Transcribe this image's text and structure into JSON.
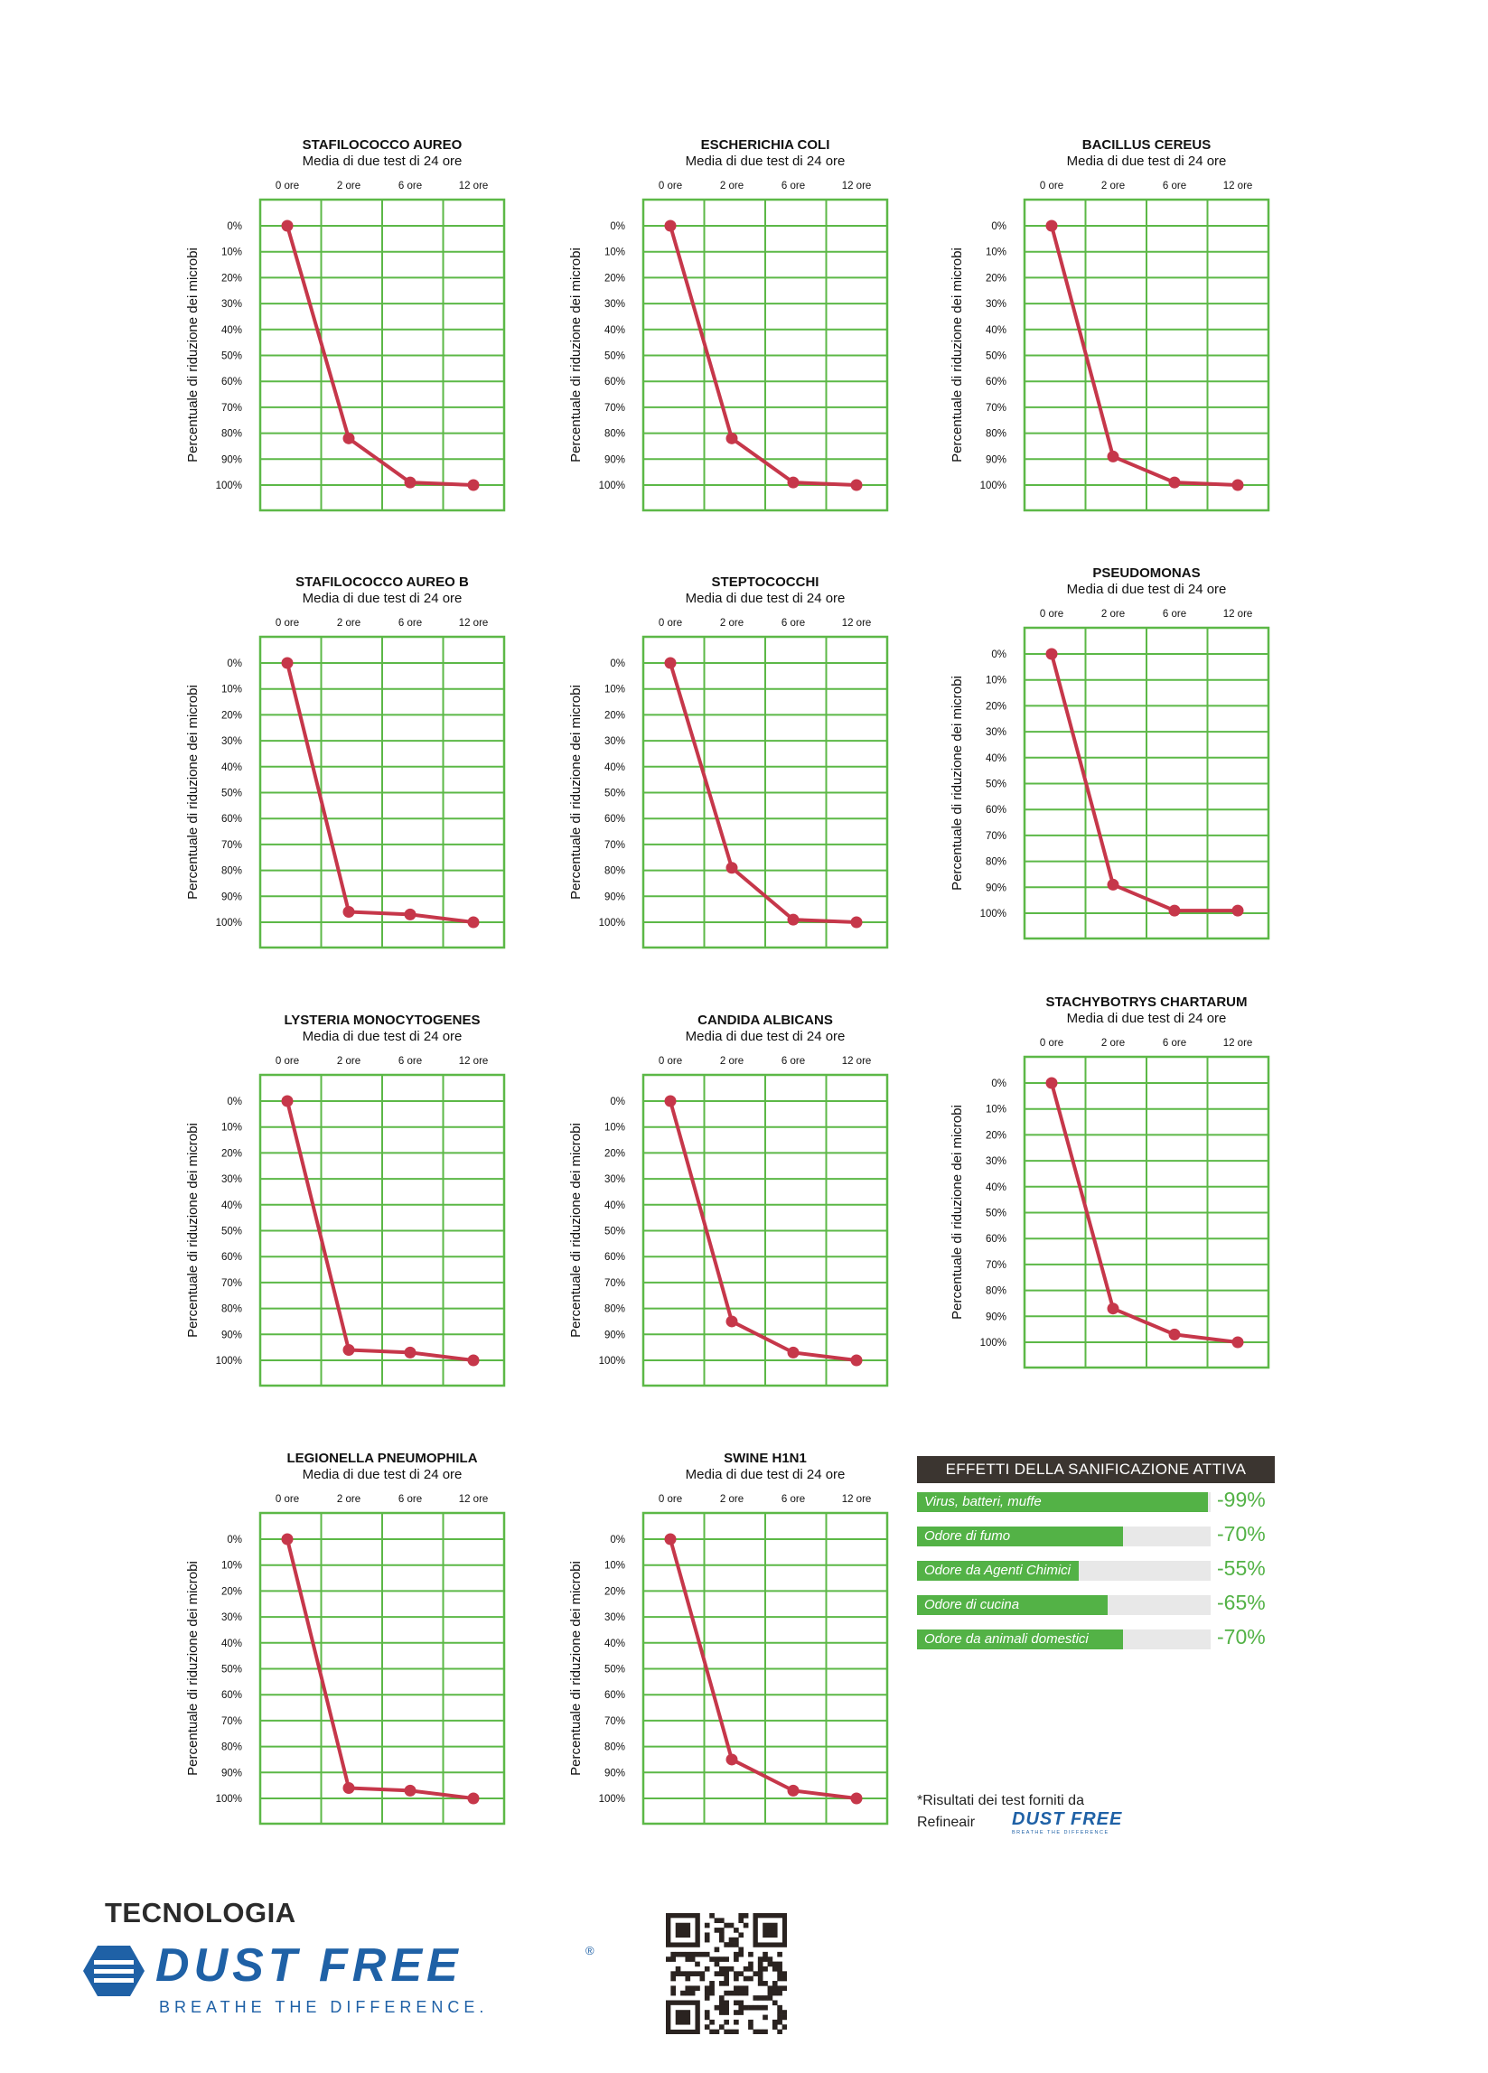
{
  "chart_common": {
    "subtitle": "Media di due test di 24 ore",
    "ylabel": "Percentuale di riduzione dei microbi",
    "x_ticks": [
      "0 ore",
      "2 ore",
      "6 ore",
      "12 ore"
    ],
    "y_ticks": [
      "0%",
      "10%",
      "20%",
      "30%",
      "40%",
      "50%",
      "60%",
      "70%",
      "80%",
      "90%",
      "100%"
    ],
    "line_color": "#c6374a",
    "grid_color": "#5cb847"
  },
  "chart_data": [
    {
      "type": "line",
      "title": "STAFILOCOCCO AUREO",
      "subtitle": "Media di due test di 24 ore",
      "ylabel": "Percentuale di riduzione dei microbi",
      "x": [
        "0 ore",
        "2 ore",
        "6 ore",
        "12 ore"
      ],
      "values": [
        0,
        82,
        99,
        100
      ],
      "ylim": [
        0,
        100
      ],
      "y_inverted": true,
      "grid": true
    },
    {
      "type": "line",
      "title": "ESCHERICHIA COLI",
      "subtitle": "Media di due test di 24 ore",
      "ylabel": "Percentuale di riduzione dei microbi",
      "x": [
        "0 ore",
        "2 ore",
        "6 ore",
        "12 ore"
      ],
      "values": [
        0,
        82,
        99,
        100
      ],
      "ylim": [
        0,
        100
      ],
      "y_inverted": true,
      "grid": true
    },
    {
      "type": "line",
      "title": "BACILLUS CEREUS",
      "subtitle": "Media di due test di 24 ore",
      "ylabel": "Percentuale di riduzione dei microbi",
      "x": [
        "0 ore",
        "2 ore",
        "6 ore",
        "12 ore"
      ],
      "values": [
        0,
        89,
        99,
        100
      ],
      "ylim": [
        0,
        100
      ],
      "y_inverted": true,
      "grid": true
    },
    {
      "type": "line",
      "title": "STAFILOCOCCO AUREO B",
      "subtitle": "Media di due test di 24 ore",
      "ylabel": "Percentuale di riduzione dei microbi",
      "x": [
        "0 ore",
        "2 ore",
        "6 ore",
        "12 ore"
      ],
      "values": [
        0,
        96,
        97,
        100
      ],
      "ylim": [
        0,
        100
      ],
      "y_inverted": true,
      "grid": true
    },
    {
      "type": "line",
      "title": "STEPTOCOCCHI",
      "subtitle": "Media di due test di 24 ore",
      "ylabel": "Percentuale di riduzione dei microbi",
      "x": [
        "0 ore",
        "2 ore",
        "6 ore",
        "12 ore"
      ],
      "values": [
        0,
        79,
        99,
        100
      ],
      "ylim": [
        0,
        100
      ],
      "y_inverted": true,
      "grid": true
    },
    {
      "type": "line",
      "title": "PSEUDOMONAS",
      "subtitle": "Media di due test di 24 ore",
      "ylabel": "Percentuale di riduzione dei microbi",
      "x": [
        "0 ore",
        "2 ore",
        "6 ore",
        "12 ore"
      ],
      "values": [
        0,
        89,
        99,
        99
      ],
      "ylim": [
        0,
        100
      ],
      "y_inverted": true,
      "grid": true
    },
    {
      "type": "line",
      "title": "LYSTERIA MONOCYTOGENES",
      "subtitle": "Media di due test di 24 ore",
      "ylabel": "Percentuale di riduzione dei microbi",
      "x": [
        "0 ore",
        "2 ore",
        "6 ore",
        "12 ore"
      ],
      "values": [
        0,
        96,
        97,
        100
      ],
      "ylim": [
        0,
        100
      ],
      "y_inverted": true,
      "grid": true
    },
    {
      "type": "line",
      "title": "CANDIDA ALBICANS",
      "subtitle": "Media di due test di 24 ore",
      "ylabel": "Percentuale di riduzione dei microbi",
      "x": [
        "0 ore",
        "2 ore",
        "6 ore",
        "12 ore"
      ],
      "values": [
        0,
        85,
        97,
        100
      ],
      "ylim": [
        0,
        100
      ],
      "y_inverted": true,
      "grid": true
    },
    {
      "type": "line",
      "title": "STACHYBOTRYS CHARTARUM",
      "subtitle": "Media di due test di 24 ore",
      "ylabel": "Percentuale di riduzione dei microbi",
      "x": [
        "0 ore",
        "2 ore",
        "6 ore",
        "12 ore"
      ],
      "values": [
        0,
        87,
        97,
        100
      ],
      "ylim": [
        0,
        100
      ],
      "y_inverted": true,
      "grid": true
    },
    {
      "type": "line",
      "title": "LEGIONELLA PNEUMOPHILA",
      "subtitle": "Media di due test di 24 ore",
      "ylabel": "Percentuale di riduzione dei microbi",
      "x": [
        "0 ore",
        "2 ore",
        "6 ore",
        "12 ore"
      ],
      "values": [
        0,
        96,
        97,
        100
      ],
      "ylim": [
        0,
        100
      ],
      "y_inverted": true,
      "grid": true
    },
    {
      "type": "line",
      "title": "SWINE H1N1",
      "subtitle": "Media di due test di 24 ore",
      "ylabel": "Percentuale di riduzione dei microbi",
      "x": [
        "0 ore",
        "2 ore",
        "6 ore",
        "12 ore"
      ],
      "values": [
        0,
        85,
        97,
        100
      ],
      "ylim": [
        0,
        100
      ],
      "y_inverted": true,
      "grid": true
    }
  ],
  "effects": {
    "title": "EFFETTI DELLA SANIFICAZIONE ATTIVA",
    "bar_color": "#53b246",
    "items": [
      {
        "label": "Virus, batteri, muffe",
        "value": "-99%",
        "fill": 0.99
      },
      {
        "label": "Odore di fumo",
        "value": "-70%",
        "fill": 0.7
      },
      {
        "label": "Odore da Agenti Chimici",
        "value": "-55%",
        "fill": 0.55
      },
      {
        "label": "Odore di cucina",
        "value": "-65%",
        "fill": 0.65
      },
      {
        "label": "Odore da animali domestici",
        "value": "-70%",
        "fill": 0.7
      }
    ]
  },
  "note": {
    "line1": "*Risultati dei test forniti da",
    "line2": "Refineair",
    "logo_word": "DUST FREE",
    "logo_tag": "BREATHE THE DIFFERENCE"
  },
  "brand": {
    "tecnologia": "TECNOLOGIA",
    "wordmark": "DUST FREE",
    "registered": "®",
    "tagline": "BREATHE THE DIFFERENCE.",
    "color": "#1f61a6"
  },
  "qr_code": {
    "icon": "qr-code-icon"
  }
}
